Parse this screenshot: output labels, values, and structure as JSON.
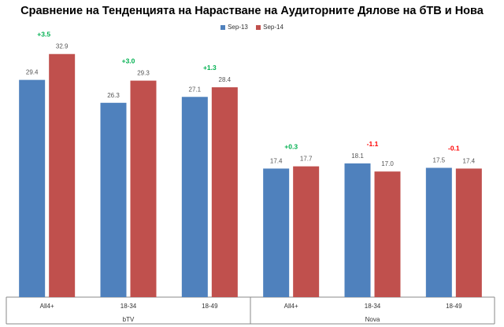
{
  "chart_data": {
    "type": "bar",
    "title": "Сравнение на Тенденцията на Нарастване на Аудиторните Дялове на бТВ и Нова",
    "legend_position": "top-center",
    "grid": false,
    "ylim": [
      0,
      40
    ],
    "categories": [
      "All4+",
      "18-34",
      "18-49",
      "All4+",
      "18-34",
      "18-49"
    ],
    "groups": [
      {
        "name": "bTV",
        "categories": [
          0,
          1,
          2
        ]
      },
      {
        "name": "Nova",
        "categories": [
          3,
          4,
          5
        ]
      }
    ],
    "series": [
      {
        "name": "Sep-13",
        "color": "#4F81BD",
        "values": [
          29.4,
          26.3,
          27.1,
          17.4,
          18.1,
          17.5
        ]
      },
      {
        "name": "Sep-14",
        "color": "#C0504D",
        "values": [
          32.9,
          29.3,
          28.4,
          17.7,
          17.0,
          17.4
        ]
      }
    ],
    "value_labels": {
      "Sep-13": [
        "29.4",
        "26.3",
        "27.1",
        "17.4",
        "18.1",
        "17.5"
      ],
      "Sep-14": [
        "32.9",
        "29.3",
        "28.4",
        "17.7",
        "17.0",
        "17.4"
      ]
    },
    "change_labels": [
      "+3.5",
      "+3.0",
      "+1.3",
      "+0.3",
      "-1.1",
      "-0.1"
    ],
    "change_colors": {
      "positive": "#00B050",
      "negative": "#FF0000"
    }
  }
}
